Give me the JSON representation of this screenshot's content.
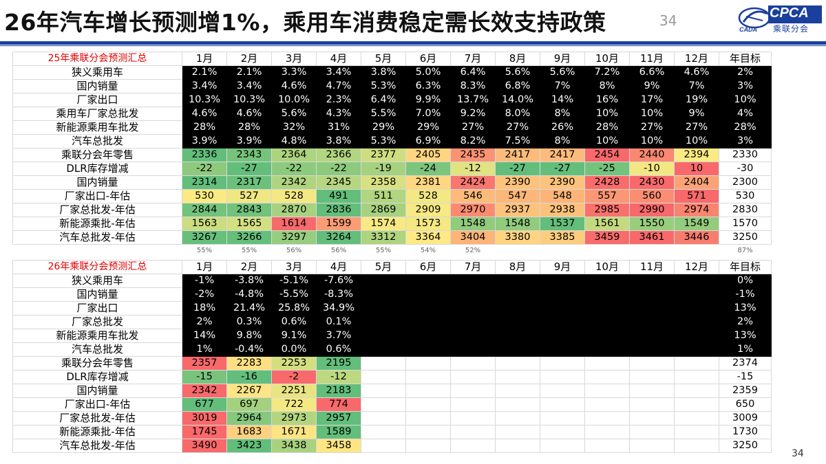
{
  "title": "26年汽车增长预测增1%，乘用车消费稳定需长效支持政策",
  "page_number": "34",
  "logo": {
    "brand": "CPCA",
    "sub": "乘联分会",
    "tag": "CADA"
  },
  "months": [
    "1月",
    "2月",
    "3月",
    "4月",
    "5月",
    "6月",
    "7月",
    "8月",
    "9月",
    "10月",
    "11月",
    "12月"
  ],
  "annual_label": "年目标",
  "table1": {
    "title": "25年乘联分会预测汇总",
    "rows": [
      {
        "label": "狭义乘用车",
        "values": [
          "2.1%",
          "2.1%",
          "3.3%",
          "3.4%",
          "3.8%",
          "5.0%",
          "6.4%",
          "5.6%",
          "5.6%",
          "7.2%",
          "6.6%",
          "4.6%"
        ],
        "annual": "2%"
      },
      {
        "label": "国内销量",
        "values": [
          "3.4%",
          "3.4%",
          "4.6%",
          "4.7%",
          "5.3%",
          "6.3%",
          "8.3%",
          "6.8%",
          "7%",
          "8%",
          "9%",
          "7%"
        ],
        "annual": "3%"
      },
      {
        "label": "厂家出口",
        "values": [
          "10.3%",
          "10.3%",
          "10.0%",
          "2.3%",
          "6.4%",
          "9.9%",
          "13.7%",
          "14.0%",
          "14%",
          "16%",
          "17%",
          "19%"
        ],
        "annual": "10%"
      },
      {
        "label": "乘用车厂家总批发",
        "values": [
          "4.6%",
          "4.6%",
          "5.6%",
          "4.3%",
          "5.5%",
          "7.0%",
          "9.2%",
          "8.0%",
          "8%",
          "10%",
          "10%",
          "9%"
        ],
        "annual": "4%"
      },
      {
        "label": "新能源乘用车批发",
        "values": [
          "28%",
          "28%",
          "32%",
          "31%",
          "29%",
          "29%",
          "27%",
          "27%",
          "26%",
          "28%",
          "27%",
          "27%"
        ],
        "annual": "28%"
      },
      {
        "label": "汽车总批发",
        "values": [
          "3.9%",
          "3.9%",
          "4.8%",
          "3.8%",
          "5.3%",
          "6.9%",
          "8.2%",
          "7.5%",
          "8%",
          "10%",
          "10%",
          "10%"
        ],
        "annual": "3%"
      },
      {
        "label": "乘联分会年零售",
        "values": [
          "2336",
          "2343",
          "2364",
          "2366",
          "2377",
          "2405",
          "2435",
          "2417",
          "2417",
          "2454",
          "2440",
          "2394"
        ],
        "annual": "2330"
      },
      {
        "label": "DLR库存增减",
        "values": [
          "-22",
          "-27",
          "-22",
          "-22",
          "-19",
          "-24",
          "-12",
          "-27",
          "-27",
          "-25",
          "-10",
          "10"
        ],
        "annual": "-30"
      },
      {
        "label": "国内销量",
        "values": [
          "2314",
          "2317",
          "2342",
          "2345",
          "2358",
          "2381",
          "2424",
          "2390",
          "2390",
          "2428",
          "2430",
          "2404"
        ],
        "annual": "2300"
      },
      {
        "label": "厂家出口-年估",
        "values": [
          "530",
          "527",
          "528",
          "491",
          "511",
          "528",
          "546",
          "547",
          "548",
          "557",
          "560",
          "571"
        ],
        "annual": "530"
      },
      {
        "label": "厂家总批发-年估",
        "values": [
          "2844",
          "2843",
          "2870",
          "2836",
          "2869",
          "2909",
          "2970",
          "2937",
          "2938",
          "2985",
          "2990",
          "2974"
        ],
        "annual": "2830"
      },
      {
        "label": "新能源乘批-年估",
        "values": [
          "1563",
          "1565",
          "1614",
          "1599",
          "1574",
          "1573",
          "1548",
          "1548",
          "1537",
          "1561",
          "1550",
          "1549"
        ],
        "annual": "1570"
      },
      {
        "label": "汽车总批发-年估",
        "values": [
          "3267",
          "3266",
          "3297",
          "3264",
          "3312",
          "3364",
          "3404",
          "3380",
          "3385",
          "3459",
          "3461",
          "3446"
        ],
        "annual": "3250"
      }
    ],
    "progress": [
      "55%",
      "55%",
      "56%",
      "56%",
      "55%",
      "54%",
      "52%",
      "",
      "",
      "",
      "",
      ""
    ],
    "progress_annual": "87%"
  },
  "table2": {
    "title": "26年乘联分会预测汇总",
    "rows": [
      {
        "label": "狭义乘用车",
        "values": [
          "-1%",
          "-3.8%",
          "-5.1%",
          "-7.6%",
          "",
          "",
          "",
          "",
          "",
          "",
          "",
          ""
        ],
        "annual": "0%"
      },
      {
        "label": "国内销量",
        "values": [
          "-2%",
          "-4.8%",
          "-5.5%",
          "-8.3%",
          "",
          "",
          "",
          "",
          "",
          "",
          "",
          ""
        ],
        "annual": "-1%"
      },
      {
        "label": "厂家出口",
        "values": [
          "18%",
          "21.4%",
          "25.8%",
          "34.9%",
          "",
          "",
          "",
          "",
          "",
          "",
          "",
          ""
        ],
        "annual": "13%"
      },
      {
        "label": "厂家总批发",
        "values": [
          "2%",
          "0.3%",
          "0.6%",
          "0.1%",
          "",
          "",
          "",
          "",
          "",
          "",
          "",
          ""
        ],
        "annual": "2%"
      },
      {
        "label": "新能源乘用车批发",
        "values": [
          "14%",
          "9.8%",
          "9.1%",
          "3.7%",
          "",
          "",
          "",
          "",
          "",
          "",
          "",
          ""
        ],
        "annual": "13%"
      },
      {
        "label": "汽车总批发",
        "values": [
          "1%",
          "-0.4%",
          "0.0%",
          "0.6%",
          "",
          "",
          "",
          "",
          "",
          "",
          "",
          ""
        ],
        "annual": "1%"
      },
      {
        "label": "乘联分会年零售",
        "values": [
          "2357",
          "2283",
          "2253",
          "2195",
          "",
          "",
          "",
          "",
          "",
          "",
          "",
          ""
        ],
        "annual": "2374"
      },
      {
        "label": "DLR库存增减",
        "values": [
          "-15",
          "-16",
          "-2",
          "-12",
          "",
          "",
          "",
          "",
          "",
          "",
          "",
          ""
        ],
        "annual": "-15"
      },
      {
        "label": "国内销量",
        "values": [
          "2342",
          "2267",
          "2251",
          "2183",
          "",
          "",
          "",
          "",
          "",
          "",
          "",
          ""
        ],
        "annual": "2359"
      },
      {
        "label": "厂家出口-年估",
        "values": [
          "677",
          "697",
          "722",
          "774",
          "",
          "",
          "",
          "",
          "",
          "",
          "",
          ""
        ],
        "annual": "650"
      },
      {
        "label": "厂家总批发-年估",
        "values": [
          "3019",
          "2964",
          "2973",
          "2957",
          "",
          "",
          "",
          "",
          "",
          "",
          "",
          ""
        ],
        "annual": "3009"
      },
      {
        "label": "新能源乘批-年估",
        "values": [
          "1745",
          "1683",
          "1671",
          "1589",
          "",
          "",
          "",
          "",
          "",
          "",
          "",
          ""
        ],
        "annual": "1730"
      },
      {
        "label": "汽车总批发-年估",
        "values": [
          "3490",
          "3423",
          "3438",
          "3458",
          "",
          "",
          "",
          "",
          "",
          "",
          "",
          ""
        ],
        "annual": "3250"
      }
    ]
  },
  "colors": {
    "black_cell": "#000000",
    "header_title": "#e00000",
    "brand_blue": "#1a3f9c",
    "heat_green": "#63be7b",
    "heat_yellow": "#ffeb84",
    "heat_red": "#f8696b"
  },
  "watermark": "",
  "page_number_bottom": "34"
}
